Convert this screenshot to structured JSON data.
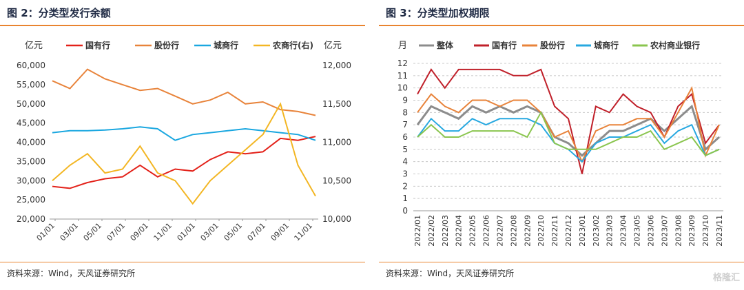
{
  "left": {
    "title": "图 2：分类型发行余额",
    "source": "资料来源：Wind，天风证券研究所"
  },
  "right": {
    "title": "图 3：分类型加权期限",
    "source": "资料来源：Wind，天风证券研究所"
  },
  "watermark": "格隆汇",
  "colors": {
    "state": "#e32119",
    "joint": "#e8833a",
    "city": "#1aa7e0",
    "rural": "#f3b623",
    "overall": "#8c8c8c",
    "state_r": "#c0202a",
    "joint_r": "#e8833a",
    "city_r": "#27a8e0",
    "rural_r": "#8ac54e",
    "rule": "#e9842f"
  },
  "chart_data": [
    {
      "type": "line",
      "title": "",
      "ylabel_left": "亿元",
      "ylabel_right": "亿元",
      "ylim": [
        20000,
        60000
      ],
      "ylim_right": [
        10000,
        12000
      ],
      "yticks": [
        "60,000",
        "55,000",
        "50,000",
        "45,000",
        "40,000",
        "35,000",
        "30,000",
        "25,000",
        "20,000"
      ],
      "yticks_right": [
        "12,000",
        "11,500",
        "11,000",
        "10,500",
        "10,000"
      ],
      "xticks": [
        "01/01",
        "03/01",
        "05/01",
        "07/01",
        "09/01",
        "11/01",
        "01/01",
        "03/01",
        "05/01",
        "07/01",
        "09/01",
        "11/01"
      ],
      "legend": "top",
      "series": [
        {
          "name": "国有行",
          "axis": "left",
          "values": [
            28500,
            28000,
            29500,
            30500,
            31000,
            34000,
            31000,
            33000,
            32500,
            35500,
            37500,
            37000,
            37500,
            41000,
            40500,
            41500
          ]
        },
        {
          "name": "股份行",
          "axis": "left",
          "values": [
            56000,
            54000,
            59000,
            56500,
            55000,
            53500,
            54000,
            52000,
            50000,
            51000,
            53000,
            50000,
            50500,
            48500,
            48000,
            47000
          ]
        },
        {
          "name": "城商行",
          "axis": "left",
          "values": [
            42500,
            43000,
            43000,
            43200,
            43500,
            44000,
            43500,
            40500,
            42000,
            42500,
            43000,
            43500,
            43000,
            42500,
            42000,
            40500
          ]
        },
        {
          "name": "农商行(右)",
          "axis": "right",
          "values": [
            10500,
            10700,
            10850,
            10600,
            10650,
            10950,
            10600,
            10500,
            10200,
            10500,
            10700,
            10900,
            11100,
            11500,
            10700,
            10300
          ]
        }
      ]
    },
    {
      "type": "line",
      "title": "",
      "ylabel": "月",
      "ylim": [
        0,
        12
      ],
      "yticks": [
        "12",
        "11",
        "10",
        "9",
        "8",
        "7",
        "6",
        "5",
        "4",
        "3",
        "2",
        "1",
        "0"
      ],
      "xticks": [
        "2022/01",
        "2022/02",
        "2022/03",
        "2022/04",
        "2022/05",
        "2022/06",
        "2022/07",
        "2022/08",
        "2022/09",
        "2022/10",
        "2022/11",
        "2022/12",
        "2023/01",
        "2023/02",
        "2023/03",
        "2023/04",
        "2023/05",
        "2023/06",
        "2023/07",
        "2023/08",
        "2023/09",
        "2023/10",
        "2023/11"
      ],
      "legend": "top",
      "series": [
        {
          "name": "整体",
          "values": [
            7.0,
            8.5,
            8.0,
            7.5,
            8.5,
            8.0,
            8.5,
            8.0,
            8.5,
            8.0,
            6.0,
            5.5,
            4.5,
            5.5,
            6.5,
            6.5,
            7.0,
            7.5,
            6.5,
            7.5,
            8.5,
            5.0,
            6.0
          ]
        },
        {
          "name": "国有行",
          "values": [
            9.5,
            11.5,
            10.0,
            11.5,
            11.5,
            11.5,
            11.5,
            11.0,
            11.0,
            11.5,
            8.5,
            7.5,
            3.0,
            8.5,
            8.0,
            9.5,
            8.5,
            8.0,
            6.0,
            8.5,
            9.5,
            5.5,
            7.0
          ]
        },
        {
          "name": "股份行",
          "values": [
            8.0,
            9.5,
            8.5,
            8.0,
            9.0,
            9.0,
            8.5,
            9.0,
            9.0,
            8.0,
            6.0,
            6.5,
            4.0,
            6.5,
            7.0,
            7.0,
            7.5,
            7.5,
            6.0,
            8.0,
            10.0,
            4.5,
            7.0
          ]
        },
        {
          "name": "城商行",
          "values": [
            6.0,
            7.5,
            6.5,
            6.5,
            7.5,
            7.0,
            7.5,
            7.5,
            7.5,
            7.0,
            5.5,
            5.0,
            4.0,
            5.5,
            6.0,
            6.0,
            6.5,
            7.0,
            5.5,
            6.5,
            7.0,
            4.5,
            5.0
          ]
        },
        {
          "name": "农村商业银行",
          "values": [
            6.0,
            7.0,
            6.0,
            6.0,
            6.5,
            6.5,
            6.5,
            6.5,
            6.0,
            8.0,
            5.5,
            5.0,
            5.0,
            5.0,
            5.5,
            6.0,
            6.0,
            6.5,
            5.0,
            5.5,
            6.0,
            4.5,
            5.0
          ]
        }
      ]
    }
  ]
}
